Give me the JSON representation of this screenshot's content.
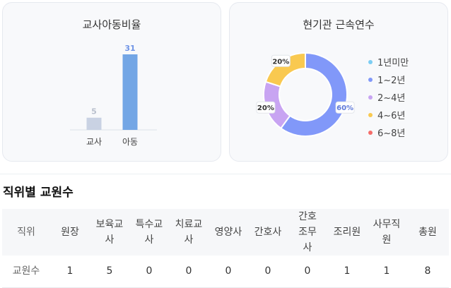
{
  "ratio_card": {
    "title": "교사아동비율"
  },
  "tenure_card": {
    "title": "현기관 근속연수"
  },
  "chart_data": [
    {
      "type": "bar",
      "title": "교사아동비율",
      "categories": [
        "교사",
        "아동"
      ],
      "values": [
        5,
        31
      ],
      "colors": [
        "#c9d2e3",
        "#73a6e5"
      ],
      "label_colors": [
        "#b8bfcc",
        "#6f94e6"
      ],
      "ylim": [
        0,
        31
      ],
      "grid": false
    },
    {
      "type": "pie",
      "title": "현기관 근속연수",
      "labels": [
        "1년미만",
        "1~2년",
        "2~4년",
        "4~6년",
        "6~8년"
      ],
      "values": [
        0,
        60,
        20,
        20,
        0
      ],
      "value_labels": [
        "",
        "60%",
        "20%",
        "20%",
        ""
      ],
      "colors": [
        "#7ccdf3",
        "#8198f9",
        "#c8a4f2",
        "#f9c950",
        "#f56d6a"
      ],
      "legend_position": "right"
    }
  ],
  "staff_section": {
    "title": "직위별 교원수"
  },
  "staff_table": {
    "row_header": "직위",
    "columns": [
      "원장",
      "보육교사",
      "특수교사",
      "치료교사",
      "영양사",
      "간호사",
      "간호조무사",
      "조리원",
      "사무직원",
      "총원"
    ],
    "row_label": "교원수",
    "values": [
      "1",
      "5",
      "0",
      "0",
      "0",
      "0",
      "0",
      "1",
      "1",
      "8"
    ]
  }
}
